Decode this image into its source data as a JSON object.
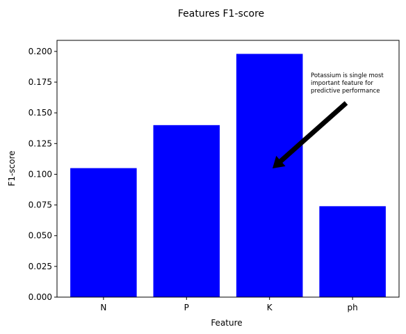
{
  "chart_data": {
    "type": "bar",
    "title": "Features F1-score",
    "xlabel": "Feature",
    "ylabel": "F1-score",
    "categories": [
      "N",
      "P",
      "K",
      "ph"
    ],
    "values": [
      0.105,
      0.14,
      0.198,
      0.074
    ],
    "ylim": [
      0,
      0.209
    ],
    "yticks": [
      "0.000",
      "0.025",
      "0.050",
      "0.075",
      "0.100",
      "0.125",
      "0.150",
      "0.175",
      "0.200"
    ],
    "bar_color": "#0000ff",
    "grid": false,
    "annotation": {
      "lines": [
        "Potassium is single most",
        "important feature for",
        "predictive performance"
      ],
      "arrow_color": "#000000"
    }
  }
}
